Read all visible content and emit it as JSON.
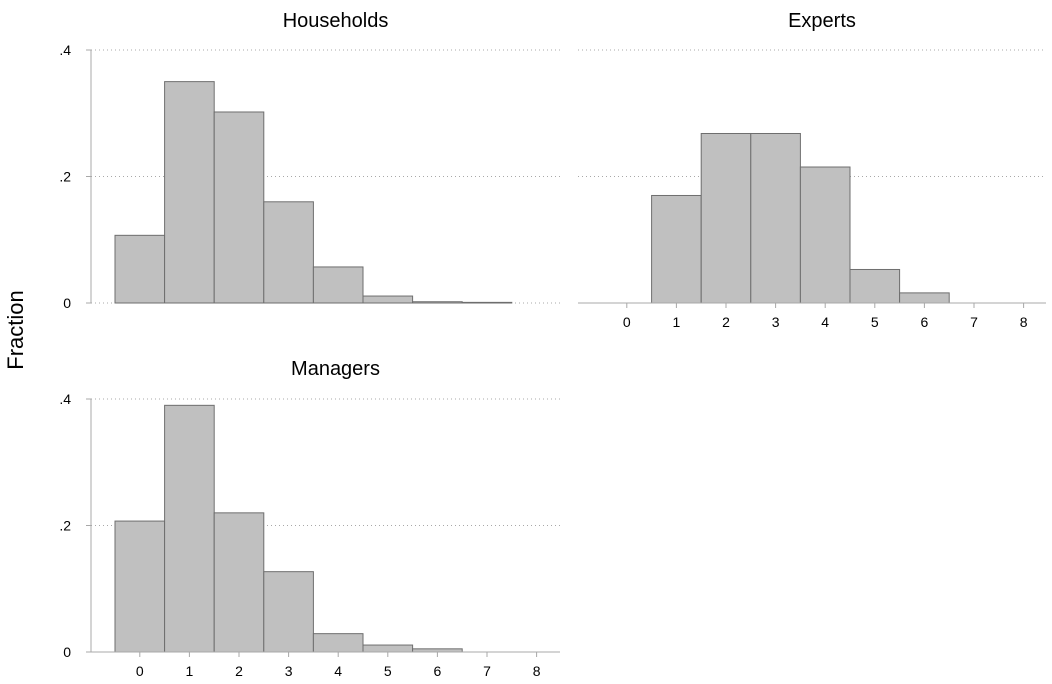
{
  "chart_data": {
    "type": "bar",
    "ylabel": "Fraction",
    "ylim": [
      0,
      0.4
    ],
    "yticks": [
      0,
      0.2,
      0.4
    ],
    "ytick_labels": [
      "0",
      ".2",
      ".4"
    ],
    "xlim": [
      -0.5,
      8
    ],
    "xticks": [
      0,
      1,
      2,
      3,
      4,
      5,
      6,
      7,
      8
    ],
    "xtick_labels": [
      "0",
      "1",
      "2",
      "3",
      "4",
      "5",
      "6",
      "7",
      "8"
    ],
    "grid": true,
    "panels": [
      {
        "title": "Households",
        "x": [
          0,
          1,
          2,
          3,
          4,
          5,
          6,
          7
        ],
        "values": [
          0.107,
          0.35,
          0.302,
          0.16,
          0.057,
          0.011,
          0.002,
          0.001
        ]
      },
      {
        "title": "Experts",
        "x": [
          1,
          2,
          3,
          4,
          5,
          6
        ],
        "values": [
          0.17,
          0.268,
          0.268,
          0.215,
          0.053,
          0.016
        ]
      },
      {
        "title": "Managers",
        "x": [
          0,
          1,
          2,
          3,
          4,
          5,
          6
        ],
        "values": [
          0.207,
          0.39,
          0.22,
          0.127,
          0.029,
          0.011,
          0.005
        ]
      }
    ]
  }
}
